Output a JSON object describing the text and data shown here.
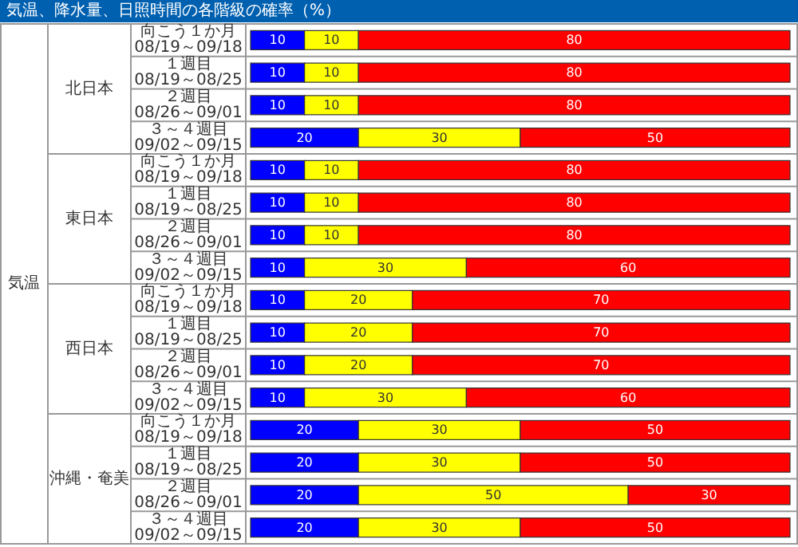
{
  "chart_data": {
    "type": "bar",
    "orientation": "horizontal",
    "stacked": true,
    "data_labels": true,
    "tick_labels": "y",
    "title": "気温、降水量、日照時間の各階級の確率（%）",
    "annotations": [
      "気温",
      "北日本",
      "東日本",
      "西日本",
      "沖縄・奄美"
    ],
    "xlim": [
      0,
      100
    ],
    "categories": [
      "向こう１か月\n08/19～09/18",
      "１週目\n08/19～08/25",
      "２週目\n08/26～09/01",
      "３～４週目\n09/02～09/15",
      "向こう１か月\n08/19～09/18",
      "１週目\n08/19～08/25",
      "２週目\n08/26～09/01",
      "３～４週目\n09/02～09/15",
      "向こう１か月\n08/19～09/18",
      "１週目\n08/19～08/25",
      "２週目\n08/26～09/01",
      "３～４週目\n09/02～09/15",
      "向こう１か月\n08/19～09/18",
      "１週目\n08/19～08/25",
      "２週目\n08/26～09/01",
      "３～４週目\n09/02～09/15"
    ],
    "series": [
      {
        "color": "#0000ff",
        "values": [
          10,
          10,
          10,
          20,
          10,
          10,
          10,
          10,
          10,
          10,
          10,
          10,
          20,
          20,
          20,
          20
        ]
      },
      {
        "color": "#ffff00",
        "values": [
          10,
          10,
          10,
          30,
          10,
          10,
          10,
          30,
          20,
          20,
          20,
          30,
          30,
          30,
          50,
          30
        ]
      },
      {
        "color": "#ff0000",
        "values": [
          80,
          80,
          80,
          50,
          80,
          80,
          80,
          60,
          70,
          70,
          70,
          60,
          50,
          50,
          30,
          50
        ]
      }
    ]
  }
}
